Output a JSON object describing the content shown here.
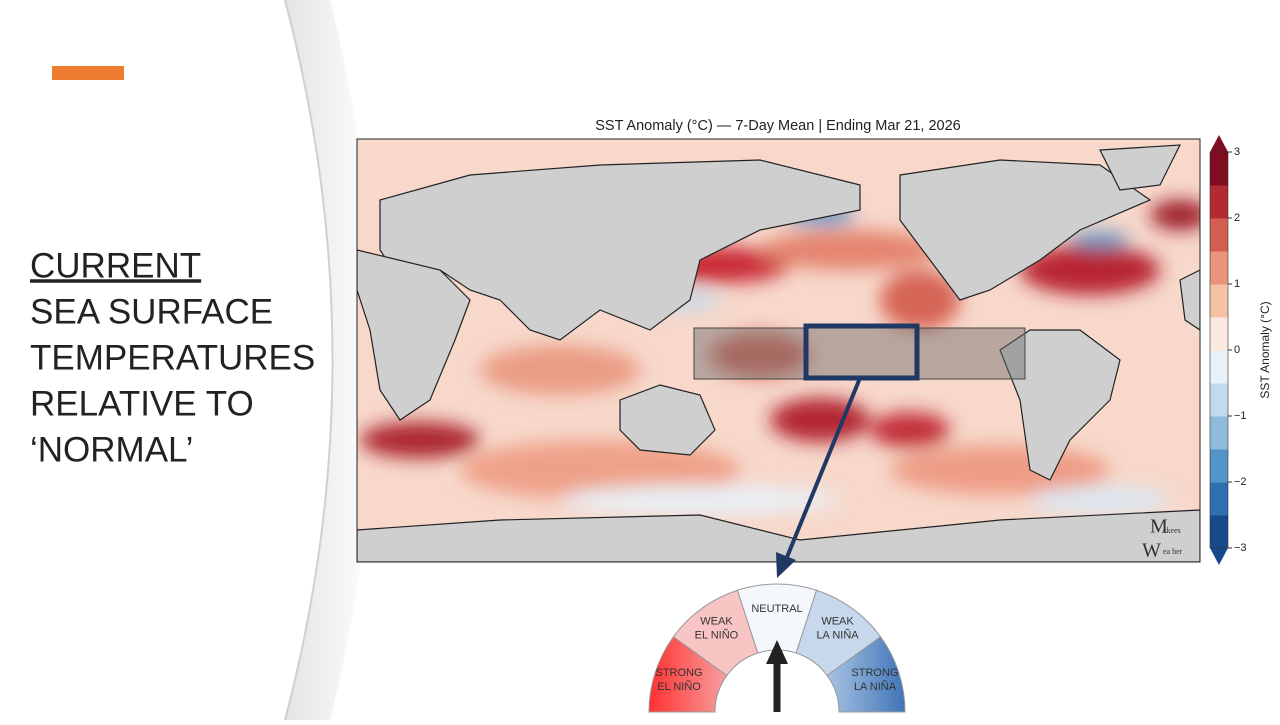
{
  "slide": {
    "heading": [
      "CURRENT",
      "SEA SURFACE",
      "TEMPERATURES",
      "RELATIVE TO",
      "‘NORMAL’"
    ],
    "map": {
      "title": "SST Anomaly (°C) — 7-Day Mean | Ending Mar 21, 2026",
      "watermark": [
        "M",
        "ckees",
        "W",
        "ea her"
      ],
      "colorbar": {
        "label": "SST Anomaly (°C)",
        "lim": [
          -3,
          3
        ],
        "ticks": [
          3,
          2,
          1,
          0,
          {
            "value": -1,
            "label": "−1"
          },
          {
            "value": -2,
            "label": "−2"
          },
          {
            "value": -3,
            "label": "−3"
          }
        ],
        "colors": [
          "#174a8c",
          "#2f6fb0",
          "#5594c6",
          "#8fbbdb",
          "#c2dbec",
          "#e8f1f7",
          "#fbe9e0",
          "#f6c2a6",
          "#e9937a",
          "#d25d51",
          "#b42a33",
          "#7f0c20"
        ]
      }
    },
    "gauge": {
      "sectors": [
        {
          "lines": [
            "STRONG",
            "EL NIÑO"
          ]
        },
        {
          "lines": [
            "WEAK",
            "EL NIÑO"
          ]
        },
        {
          "lines": [
            "NEUTRAL"
          ]
        },
        {
          "lines": [
            "WEAK",
            "LA NIÑA"
          ]
        },
        {
          "lines": [
            "STRONG",
            "LA NIÑA"
          ]
        }
      ]
    }
  }
}
